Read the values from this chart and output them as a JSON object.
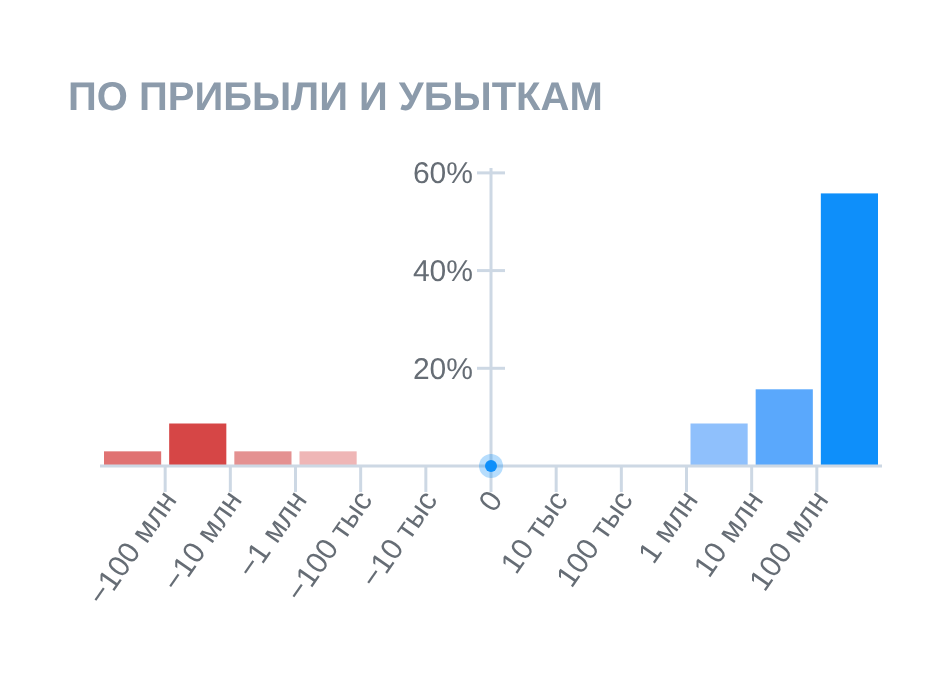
{
  "chart_data": {
    "type": "bar",
    "title": "ПО ПРИБЫЛИ И УБЫТКАМ",
    "categories": [
      null,
      null,
      null,
      null,
      null,
      null,
      null,
      null,
      null,
      null,
      null,
      null
    ],
    "values": [
      3,
      8.7,
      3,
      3,
      0,
      0,
      0,
      0,
      0,
      8.7,
      15.7,
      55.8
    ],
    "colors": [
      "#e07272",
      "#d64646",
      "#e49191",
      "#efb6b6",
      "#cccccc",
      "#cccccc",
      "#cccccc",
      "#cccccc",
      "#cccccc",
      "#8fc0fc",
      "#5aa8fc",
      "#0e8ffa"
    ],
    "annotations": [
      "−100 млн",
      "−10 млн",
      "−1 млн",
      "−100 тыс",
      "−10 тыс",
      "0",
      "10 тыс",
      "100 тыс",
      "1 млн",
      "10 млн",
      "100 млн"
    ],
    "ylim": [
      0,
      61
    ],
    "yticks": [
      {
        "value": 20,
        "label": "20%"
      },
      {
        "value": 40,
        "label": "40%"
      },
      {
        "value": 60,
        "label": "60%"
      }
    ]
  }
}
